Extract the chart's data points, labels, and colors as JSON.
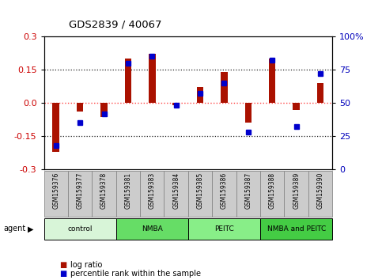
{
  "title": "GDS2839 / 40067",
  "samples": [
    "GSM159376",
    "GSM159377",
    "GSM159378",
    "GSM159381",
    "GSM159383",
    "GSM159384",
    "GSM159385",
    "GSM159386",
    "GSM159387",
    "GSM159388",
    "GSM159389",
    "GSM159390"
  ],
  "log_ratio": [
    -0.22,
    -0.04,
    -0.065,
    0.2,
    0.22,
    -0.01,
    0.07,
    0.14,
    -0.09,
    0.2,
    -0.03,
    0.09
  ],
  "percentile": [
    18,
    35,
    42,
    80,
    85,
    48,
    57,
    65,
    28,
    82,
    32,
    72
  ],
  "groups": [
    {
      "label": "control",
      "start": 0,
      "end": 3,
      "color": "#d8f5d8"
    },
    {
      "label": "NMBA",
      "start": 3,
      "end": 6,
      "color": "#66dd66"
    },
    {
      "label": "PEITC",
      "start": 6,
      "end": 9,
      "color": "#88ee88"
    },
    {
      "label": "NMBA and PEITC",
      "start": 9,
      "end": 12,
      "color": "#44cc44"
    }
  ],
  "bar_color": "#aa1100",
  "dot_color": "#0000cc",
  "zero_line_color": "#ff4444",
  "dotted_line_color": "#222222",
  "ylim": [
    -0.3,
    0.3
  ],
  "yticks_left": [
    -0.3,
    -0.15,
    0.0,
    0.15,
    0.3
  ],
  "yticks_right": [
    0,
    25,
    50,
    75,
    100
  ],
  "background_plot": "#ffffff",
  "background_fig": "#ffffff",
  "bar_width": 0.28,
  "sample_box_color": "#cccccc",
  "sample_box_edge": "#888888"
}
